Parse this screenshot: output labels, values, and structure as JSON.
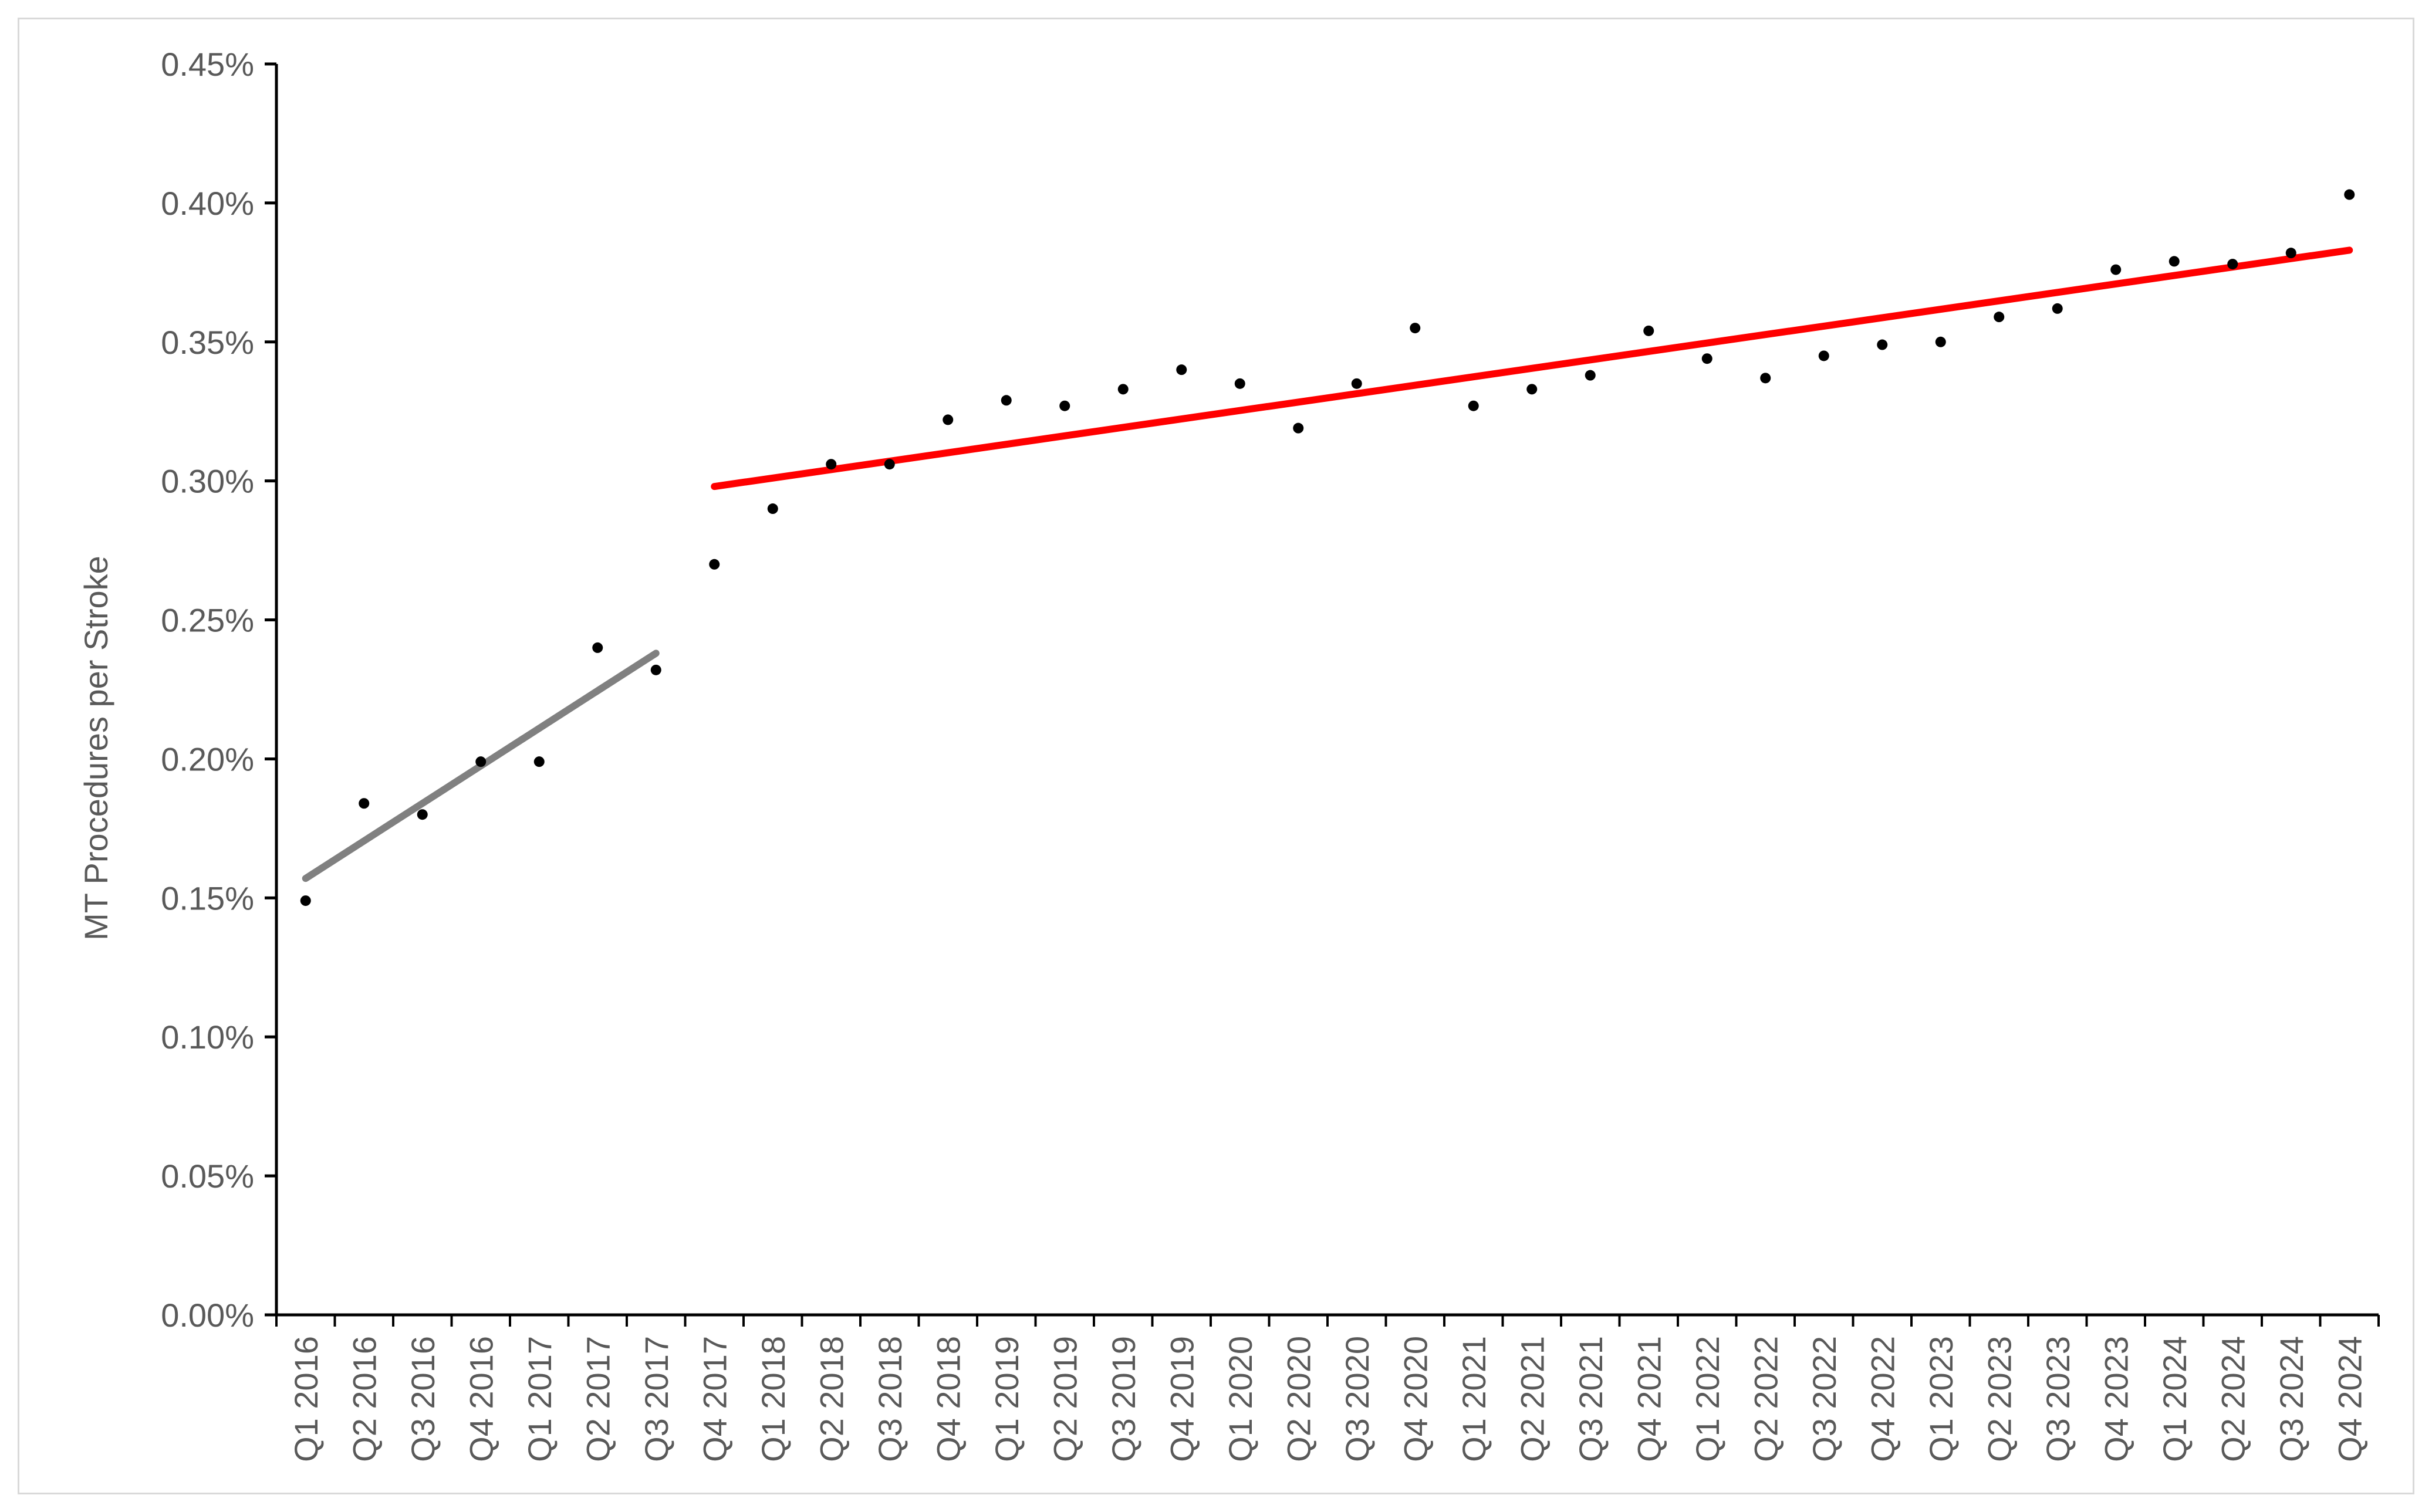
{
  "chart_data": {
    "type": "scatter",
    "title": "",
    "xlabel": "",
    "ylabel": "MT Procedures per Stroke",
    "ylim": [
      0,
      0.45
    ],
    "y_ticks": [
      "0.00%",
      "0.05%",
      "0.10%",
      "0.15%",
      "0.20%",
      "0.25%",
      "0.30%",
      "0.35%",
      "0.40%",
      "0.45%"
    ],
    "categories": [
      "Q1 2016",
      "Q2 2016",
      "Q3 2016",
      "Q4 2016",
      "Q1 2017",
      "Q2 2017",
      "Q3 2017",
      "Q4 2017",
      "Q1 2018",
      "Q2 2018",
      "Q3 2018",
      "Q4 2018",
      "Q1 2019",
      "Q2 2019",
      "Q3 2019",
      "Q4 2019",
      "Q1 2020",
      "Q2 2020",
      "Q3 2020",
      "Q4 2020",
      "Q1 2021",
      "Q2 2021",
      "Q3 2021",
      "Q4 2021",
      "Q1 2022",
      "Q2 2022",
      "Q3 2022",
      "Q4 2022",
      "Q1 2023",
      "Q2 2023",
      "Q3 2023",
      "Q4 2023",
      "Q1 2024",
      "Q2 2024",
      "Q3 2024",
      "Q4 2024"
    ],
    "series": [
      {
        "marker_color": "#000000",
        "values": [
          0.149,
          0.184,
          0.18,
          0.199,
          0.199,
          0.24,
          0.232,
          0.27,
          0.29,
          0.306,
          0.306,
          0.322,
          0.329,
          0.327,
          0.333,
          0.34,
          0.335,
          0.319,
          0.335,
          0.355,
          0.327,
          0.333,
          0.338,
          0.354,
          0.344,
          0.337,
          0.345,
          0.349,
          0.35,
          0.359,
          0.362,
          0.376,
          0.379,
          0.378,
          0.382,
          0.403
        ]
      }
    ],
    "trendlines": [
      {
        "color": "#808080",
        "from_category": "Q1 2016",
        "to_category": "Q3 2017",
        "start_value": 0.157,
        "end_value": 0.238
      },
      {
        "color": "#ff0000",
        "from_category": "Q4 2017",
        "to_category": "Q4 2024",
        "start_value": 0.298,
        "end_value": 0.383
      }
    ],
    "grid": false,
    "legend": "none"
  }
}
